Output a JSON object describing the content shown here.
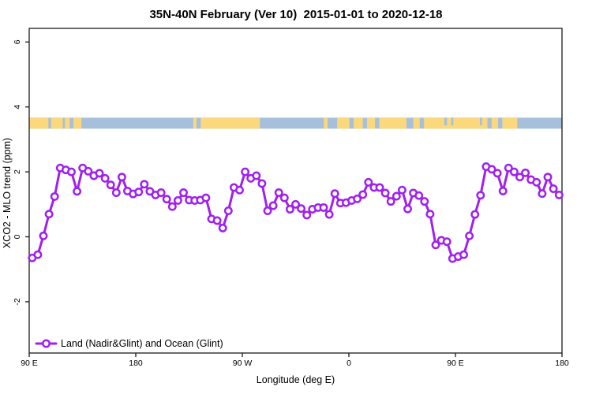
{
  "title": "35N-40N February (Ver 10)  2015-01-01 to 2020-12-18",
  "chart_data": {
    "type": "line",
    "title": "35N-40N February (Ver 10)  2015-01-01 to 2020-12-18",
    "xlabel": "Longitude (deg E)",
    "ylabel": "XCO2 - MLO trend (ppm)",
    "xlim": [
      90,
      540
    ],
    "ylim": [
      -3.58,
      6.42
    ],
    "grid": "off",
    "x_ticks": [
      {
        "lon": 90,
        "label": "90 E"
      },
      {
        "lon": 180,
        "label": "180"
      },
      {
        "lon": 270,
        "label": "90 W"
      },
      {
        "lon": 360,
        "label": "0"
      },
      {
        "lon": 450,
        "label": "90 E"
      },
      {
        "lon": 540,
        "label": "180"
      }
    ],
    "y_ticks": [
      {
        "value": -2,
        "label": "-2"
      },
      {
        "value": 0,
        "label": "0"
      },
      {
        "value": 2,
        "label": "2"
      },
      {
        "value": 4,
        "label": "4"
      },
      {
        "value": 6,
        "label": "6"
      }
    ],
    "legend": {
      "label": "Land (Nadir&Glint) and Ocean (Glint)",
      "position": "bottom-left",
      "marker": "open-circle-on-line"
    },
    "series": [
      {
        "name": "Land (Nadir&Glint) and Ocean (Glint)",
        "color": "#A020F0",
        "marker": "open-circle",
        "lon_start": 92.5,
        "lon_end": 537.5,
        "values": [
          -0.65,
          -0.55,
          0.03,
          0.7,
          1.24,
          2.12,
          2.06,
          2.0,
          1.4,
          2.12,
          2.02,
          1.88,
          1.96,
          1.8,
          1.6,
          1.36,
          1.84,
          1.41,
          1.32,
          1.38,
          1.62,
          1.4,
          1.29,
          1.36,
          1.16,
          0.93,
          1.12,
          1.36,
          1.13,
          1.12,
          1.13,
          1.2,
          0.55,
          0.5,
          0.27,
          0.8,
          1.52,
          1.44,
          2.0,
          1.8,
          1.88,
          1.64,
          0.8,
          0.96,
          1.36,
          1.2,
          0.85,
          1.0,
          0.87,
          0.67,
          0.85,
          0.9,
          0.9,
          0.69,
          1.33,
          1.04,
          1.05,
          1.12,
          1.17,
          1.3,
          1.68,
          1.52,
          1.52,
          1.35,
          1.09,
          1.25,
          1.44,
          0.86,
          1.35,
          1.27,
          1.09,
          0.7,
          -0.25,
          -0.11,
          -0.15,
          -0.67,
          -0.61,
          -0.55,
          0.03,
          0.69,
          1.28,
          2.16,
          2.08,
          1.96,
          1.41,
          2.12,
          2.0,
          1.84,
          1.97,
          1.76,
          1.68,
          1.33,
          1.84,
          1.48,
          1.29
        ]
      }
    ],
    "map_strip": {
      "description": "land-ocean mask band along 35N-40N",
      "y_top": 3.67,
      "y_bottom": 3.33,
      "land_color": "#FBD87C",
      "ocean_color": "#A6C0DC",
      "land_segments_frac": [
        [
          0.0,
          0.036
        ],
        [
          0.041,
          0.063
        ],
        [
          0.067,
          0.076
        ],
        [
          0.083,
          0.098
        ],
        [
          0.308,
          0.314
        ],
        [
          0.322,
          0.433
        ],
        [
          0.553,
          0.56
        ],
        [
          0.578,
          0.601
        ],
        [
          0.609,
          0.626
        ],
        [
          0.634,
          0.649
        ],
        [
          0.657,
          0.708
        ],
        [
          0.721,
          0.733
        ],
        [
          0.741,
          0.86
        ],
        [
          0.868,
          0.88
        ],
        [
          0.888,
          0.916
        ]
      ],
      "ocean_patches_frac": [
        [
          0.779,
          0.784
        ],
        [
          0.792,
          0.796
        ],
        [
          0.846,
          0.85
        ]
      ]
    }
  },
  "colors": {
    "series_purple": "#A020F0",
    "land_yellow": "#FBD87C",
    "ocean_blue": "#A6C0DC",
    "axis_black": "#1a1a1a",
    "background": "#ffffff"
  }
}
